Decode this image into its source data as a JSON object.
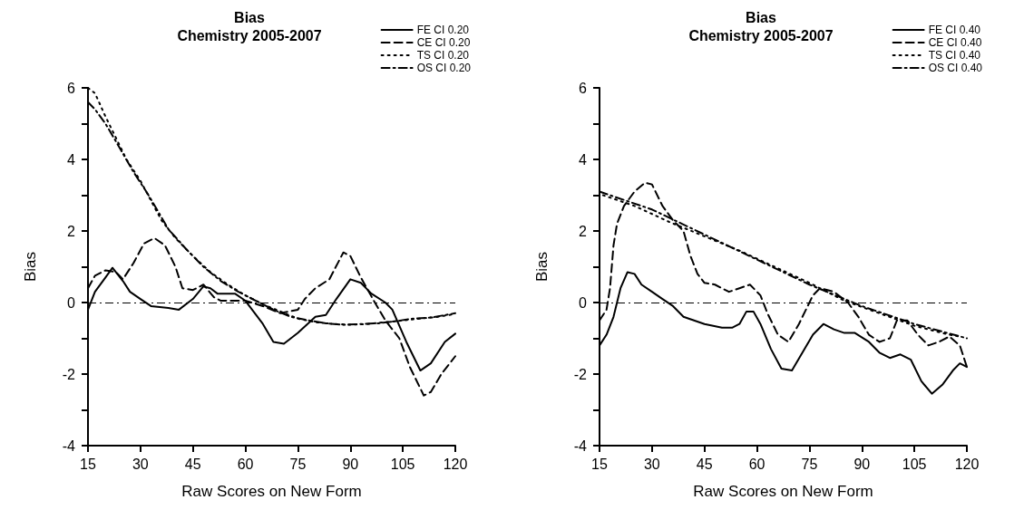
{
  "chart_data": [
    {
      "type": "line",
      "title": "Bias",
      "subtitle": "Chemistry 2005-2007",
      "xlabel": "Raw Scores on New Form",
      "ylabel": "Bias",
      "xlim": [
        15,
        120
      ],
      "xticks": [
        15,
        30,
        45,
        60,
        75,
        90,
        105,
        120
      ],
      "ylim": [
        -4,
        6
      ],
      "yticks": [
        -4,
        {
          "value": -3,
          "label": null
        },
        -2,
        {
          "value": -1,
          "label": null
        },
        0,
        {
          "value": 1,
          "label": null
        },
        2,
        {
          "value": 3,
          "label": null
        },
        4,
        {
          "value": 5,
          "label": null
        },
        6
      ],
      "grid": false,
      "legend": "top right",
      "marker": "none",
      "ref_lines": [
        {
          "axis": "y",
          "value": 0,
          "label": null,
          "color": "#000000",
          "line_style": "dashdot"
        }
      ],
      "series": [
        {
          "name": "FE CI 0.20",
          "color": "#000000",
          "line_style": "solid",
          "x": [
            15,
            17,
            20,
            22,
            25,
            27,
            30,
            33,
            38,
            41,
            45,
            48,
            50,
            52,
            57,
            60,
            65,
            68,
            71,
            75,
            80,
            83,
            86,
            90,
            93,
            96,
            100,
            102,
            106,
            110,
            113,
            117,
            120
          ],
          "values": [
            -0.2,
            0.3,
            0.7,
            0.97,
            0.6,
            0.3,
            0.1,
            -0.1,
            -0.15,
            -0.2,
            0.1,
            0.45,
            0.4,
            0.25,
            0.25,
            0.05,
            -0.6,
            -1.1,
            -1.15,
            -0.85,
            -0.4,
            -0.35,
            0.1,
            0.65,
            0.55,
            0.25,
            0.0,
            -0.2,
            -1.1,
            -1.9,
            -1.7,
            -1.1,
            -0.87
          ]
        },
        {
          "name": "CE CI 0.20",
          "color": "#000000",
          "line_style": "dashed",
          "x": [
            15,
            17,
            20,
            23,
            25,
            28,
            31,
            34,
            37,
            40,
            42,
            45,
            48,
            51,
            53,
            56,
            60,
            65,
            70,
            75,
            77,
            80,
            84,
            88,
            90,
            93,
            97,
            100,
            104,
            107,
            111,
            113,
            116,
            120
          ],
          "values": [
            0.4,
            0.75,
            0.9,
            0.85,
            0.65,
            1.1,
            1.65,
            1.8,
            1.6,
            1.0,
            0.4,
            0.35,
            0.5,
            0.15,
            0.05,
            0.05,
            0.05,
            -0.1,
            -0.3,
            -0.2,
            0.1,
            0.4,
            0.65,
            1.4,
            1.3,
            0.7,
            0.0,
            -0.5,
            -1.0,
            -1.8,
            -2.6,
            -2.5,
            -2.0,
            -1.5
          ]
        },
        {
          "name": "TS CI 0.20",
          "color": "#000000",
          "line_style": "dotted",
          "x": [
            15,
            17,
            20,
            23,
            26,
            30,
            33,
            36,
            40,
            45,
            50,
            55,
            60,
            65,
            70,
            75,
            80,
            85,
            90,
            95,
            100,
            105,
            110,
            115,
            120
          ],
          "values": [
            6.0,
            5.85,
            5.2,
            4.6,
            4.0,
            3.4,
            2.85,
            2.3,
            1.8,
            1.3,
            0.85,
            0.5,
            0.2,
            -0.05,
            -0.25,
            -0.45,
            -0.55,
            -0.6,
            -0.62,
            -0.6,
            -0.55,
            -0.5,
            -0.45,
            -0.4,
            -0.32
          ]
        },
        {
          "name": "OS CI 0.20",
          "color": "#000000",
          "line_style": "dashdot",
          "x": [
            15,
            17,
            20,
            23,
            28,
            32,
            38,
            43,
            48,
            53,
            58,
            63,
            68,
            73,
            78,
            83,
            88,
            93,
            98,
            103,
            108,
            113,
            120
          ],
          "values": [
            5.6,
            5.4,
            5.0,
            4.5,
            3.65,
            3.05,
            2.05,
            1.5,
            1.0,
            0.6,
            0.3,
            0.05,
            -0.2,
            -0.4,
            -0.5,
            -0.58,
            -0.62,
            -0.6,
            -0.58,
            -0.52,
            -0.45,
            -0.42,
            -0.3
          ]
        }
      ]
    },
    {
      "type": "line",
      "title": "Bias",
      "subtitle": "Chemistry 2005-2007",
      "xlabel": "Raw Scores on New Form",
      "ylabel": "Bias",
      "xlim": [
        15,
        120
      ],
      "xticks": [
        15,
        30,
        45,
        60,
        75,
        90,
        105,
        120
      ],
      "ylim": [
        -4,
        6
      ],
      "yticks": [
        -4,
        {
          "value": -3,
          "label": null
        },
        -2,
        {
          "value": -1,
          "label": null
        },
        0,
        {
          "value": 1,
          "label": null
        },
        2,
        {
          "value": 3,
          "label": null
        },
        4,
        {
          "value": 5,
          "label": null
        },
        6
      ],
      "grid": false,
      "legend": "top right",
      "marker": "none",
      "ref_lines": [
        {
          "axis": "y",
          "value": 0,
          "label": null,
          "color": "#000000",
          "line_style": "dashdot"
        }
      ],
      "series": [
        {
          "name": "FE CI 0.40",
          "color": "#000000",
          "line_style": "solid",
          "x": [
            15,
            17,
            19,
            21,
            23,
            25,
            27,
            30,
            33,
            36,
            39,
            42,
            45,
            50,
            53,
            55,
            57,
            59,
            61,
            64,
            67,
            70,
            73,
            76,
            79,
            82,
            85,
            88,
            92,
            95,
            98,
            101,
            104,
            107,
            110,
            113,
            116,
            118,
            120
          ],
          "values": [
            -1.2,
            -0.9,
            -0.4,
            0.4,
            0.85,
            0.8,
            0.5,
            0.3,
            0.1,
            -0.1,
            -0.4,
            -0.5,
            -0.6,
            -0.7,
            -0.7,
            -0.6,
            -0.25,
            -0.25,
            -0.6,
            -1.3,
            -1.85,
            -1.9,
            -1.4,
            -0.9,
            -0.6,
            -0.75,
            -0.85,
            -0.85,
            -1.1,
            -1.4,
            -1.55,
            -1.45,
            -1.6,
            -2.2,
            -2.55,
            -2.3,
            -1.9,
            -1.7,
            -1.8
          ]
        },
        {
          "name": "CE CI 0.40",
          "color": "#000000",
          "line_style": "dashed",
          "x": [
            15,
            17,
            18,
            19,
            20,
            22,
            25,
            28,
            30,
            33,
            36,
            39,
            41,
            43,
            45,
            48,
            52,
            55,
            58,
            61,
            63,
            66,
            69,
            72,
            74,
            76,
            78,
            82,
            86,
            89,
            92,
            95,
            98,
            100,
            103,
            106,
            109,
            112,
            115,
            118,
            120
          ],
          "values": [
            -0.5,
            -0.2,
            0.4,
            1.6,
            2.2,
            2.7,
            3.1,
            3.35,
            3.3,
            2.7,
            2.3,
            2.0,
            1.3,
            0.8,
            0.55,
            0.5,
            0.3,
            0.4,
            0.5,
            0.2,
            -0.3,
            -0.9,
            -1.1,
            -0.6,
            -0.2,
            0.2,
            0.4,
            0.3,
            0.0,
            -0.4,
            -0.9,
            -1.1,
            -1.0,
            -0.5,
            -0.5,
            -0.9,
            -1.2,
            -1.1,
            -0.95,
            -1.2,
            -1.8
          ]
        },
        {
          "name": "TS CI 0.40",
          "color": "#000000",
          "line_style": "dotted",
          "x": [
            16,
            25,
            35,
            45,
            55,
            65,
            75,
            85,
            95,
            105,
            115,
            118
          ],
          "values": [
            3.0,
            2.7,
            2.25,
            1.85,
            1.45,
            1.0,
            0.55,
            0.05,
            -0.3,
            -0.65,
            -0.9,
            -0.95
          ]
        },
        {
          "name": "OS CI 0.40",
          "color": "#000000",
          "line_style": "dashdot",
          "x": [
            15,
            30,
            45,
            60,
            75,
            90,
            105,
            120
          ],
          "values": [
            3.1,
            2.6,
            1.9,
            1.2,
            0.5,
            -0.1,
            -0.6,
            -1.0
          ]
        }
      ]
    }
  ]
}
